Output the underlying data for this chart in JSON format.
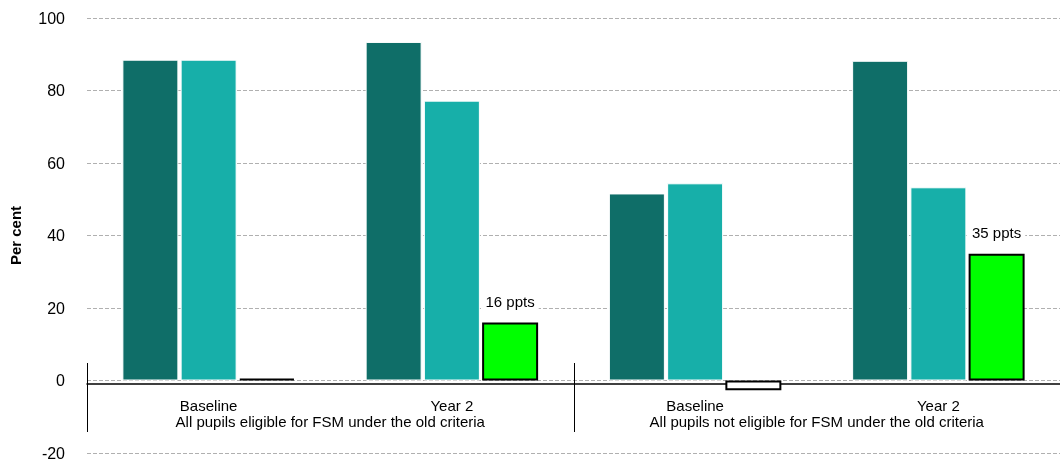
{
  "chart_data": {
    "type": "bar",
    "ylabel": "Per cent",
    "categories": [
      "Baseline",
      "Year 2",
      "Baseline",
      "Year 2"
    ],
    "series": [
      {
        "color": "#0f6e68",
        "values": [
          88.5,
          93.4,
          51.6,
          88.2
        ]
      },
      {
        "color": "#17afa9",
        "values": [
          88.5,
          77.2,
          54.4,
          53.3
        ]
      },
      {
        "colors": [
          "#000000",
          "#00ff00",
          "#ffffff",
          "#00ff00"
        ],
        "values": [
          0.5,
          16,
          -2.7,
          35
        ],
        "value_labels": [
          null,
          "16 ppts",
          null,
          "35 ppts"
        ]
      }
    ],
    "annotations": [
      "All pupils eligible for FSM under the old criteria",
      "All pupils not eligible for FSM under the old criteria"
    ],
    "ylim": [
      -20,
      100
    ],
    "yticks": [
      -20,
      0,
      20,
      40,
      60,
      80,
      100
    ],
    "grid": "y"
  }
}
